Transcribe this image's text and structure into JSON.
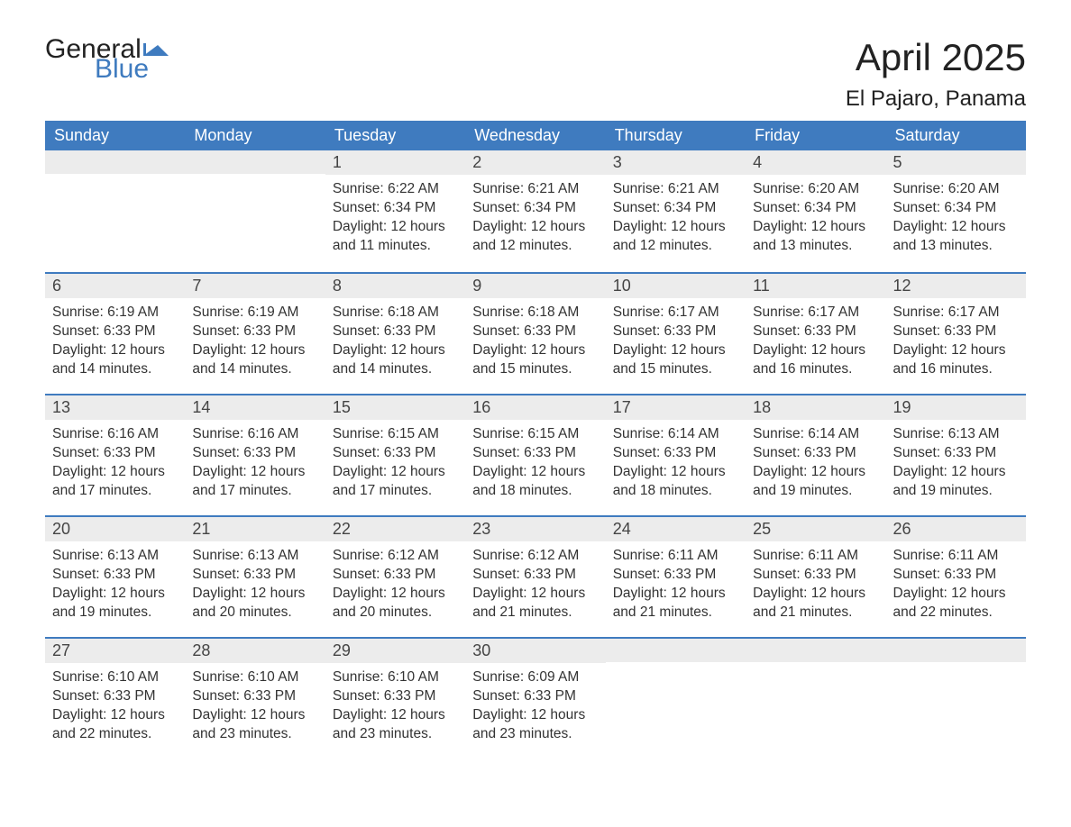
{
  "logo": {
    "word1": "General",
    "word2": "Blue",
    "word1_color": "#222222",
    "word2_color": "#3f7bbf",
    "flag_color": "#3f7bbf"
  },
  "title": "April 2025",
  "location": "El Pajaro, Panama",
  "colors": {
    "header_bg": "#3f7bbf",
    "header_text": "#ffffff",
    "daynum_bg": "#ececec",
    "row_border": "#3f7bbf",
    "body_text": "#333333",
    "background": "#ffffff"
  },
  "day_headers": [
    "Sunday",
    "Monday",
    "Tuesday",
    "Wednesday",
    "Thursday",
    "Friday",
    "Saturday"
  ],
  "weeks": [
    [
      {
        "num": "",
        "sunrise": "",
        "sunset": "",
        "daylight": ""
      },
      {
        "num": "",
        "sunrise": "",
        "sunset": "",
        "daylight": ""
      },
      {
        "num": "1",
        "sunrise": "Sunrise: 6:22 AM",
        "sunset": "Sunset: 6:34 PM",
        "daylight": "Daylight: 12 hours and 11 minutes."
      },
      {
        "num": "2",
        "sunrise": "Sunrise: 6:21 AM",
        "sunset": "Sunset: 6:34 PM",
        "daylight": "Daylight: 12 hours and 12 minutes."
      },
      {
        "num": "3",
        "sunrise": "Sunrise: 6:21 AM",
        "sunset": "Sunset: 6:34 PM",
        "daylight": "Daylight: 12 hours and 12 minutes."
      },
      {
        "num": "4",
        "sunrise": "Sunrise: 6:20 AM",
        "sunset": "Sunset: 6:34 PM",
        "daylight": "Daylight: 12 hours and 13 minutes."
      },
      {
        "num": "5",
        "sunrise": "Sunrise: 6:20 AM",
        "sunset": "Sunset: 6:34 PM",
        "daylight": "Daylight: 12 hours and 13 minutes."
      }
    ],
    [
      {
        "num": "6",
        "sunrise": "Sunrise: 6:19 AM",
        "sunset": "Sunset: 6:33 PM",
        "daylight": "Daylight: 12 hours and 14 minutes."
      },
      {
        "num": "7",
        "sunrise": "Sunrise: 6:19 AM",
        "sunset": "Sunset: 6:33 PM",
        "daylight": "Daylight: 12 hours and 14 minutes."
      },
      {
        "num": "8",
        "sunrise": "Sunrise: 6:18 AM",
        "sunset": "Sunset: 6:33 PM",
        "daylight": "Daylight: 12 hours and 14 minutes."
      },
      {
        "num": "9",
        "sunrise": "Sunrise: 6:18 AM",
        "sunset": "Sunset: 6:33 PM",
        "daylight": "Daylight: 12 hours and 15 minutes."
      },
      {
        "num": "10",
        "sunrise": "Sunrise: 6:17 AM",
        "sunset": "Sunset: 6:33 PM",
        "daylight": "Daylight: 12 hours and 15 minutes."
      },
      {
        "num": "11",
        "sunrise": "Sunrise: 6:17 AM",
        "sunset": "Sunset: 6:33 PM",
        "daylight": "Daylight: 12 hours and 16 minutes."
      },
      {
        "num": "12",
        "sunrise": "Sunrise: 6:17 AM",
        "sunset": "Sunset: 6:33 PM",
        "daylight": "Daylight: 12 hours and 16 minutes."
      }
    ],
    [
      {
        "num": "13",
        "sunrise": "Sunrise: 6:16 AM",
        "sunset": "Sunset: 6:33 PM",
        "daylight": "Daylight: 12 hours and 17 minutes."
      },
      {
        "num": "14",
        "sunrise": "Sunrise: 6:16 AM",
        "sunset": "Sunset: 6:33 PM",
        "daylight": "Daylight: 12 hours and 17 minutes."
      },
      {
        "num": "15",
        "sunrise": "Sunrise: 6:15 AM",
        "sunset": "Sunset: 6:33 PM",
        "daylight": "Daylight: 12 hours and 17 minutes."
      },
      {
        "num": "16",
        "sunrise": "Sunrise: 6:15 AM",
        "sunset": "Sunset: 6:33 PM",
        "daylight": "Daylight: 12 hours and 18 minutes."
      },
      {
        "num": "17",
        "sunrise": "Sunrise: 6:14 AM",
        "sunset": "Sunset: 6:33 PM",
        "daylight": "Daylight: 12 hours and 18 minutes."
      },
      {
        "num": "18",
        "sunrise": "Sunrise: 6:14 AM",
        "sunset": "Sunset: 6:33 PM",
        "daylight": "Daylight: 12 hours and 19 minutes."
      },
      {
        "num": "19",
        "sunrise": "Sunrise: 6:13 AM",
        "sunset": "Sunset: 6:33 PM",
        "daylight": "Daylight: 12 hours and 19 minutes."
      }
    ],
    [
      {
        "num": "20",
        "sunrise": "Sunrise: 6:13 AM",
        "sunset": "Sunset: 6:33 PM",
        "daylight": "Daylight: 12 hours and 19 minutes."
      },
      {
        "num": "21",
        "sunrise": "Sunrise: 6:13 AM",
        "sunset": "Sunset: 6:33 PM",
        "daylight": "Daylight: 12 hours and 20 minutes."
      },
      {
        "num": "22",
        "sunrise": "Sunrise: 6:12 AM",
        "sunset": "Sunset: 6:33 PM",
        "daylight": "Daylight: 12 hours and 20 minutes."
      },
      {
        "num": "23",
        "sunrise": "Sunrise: 6:12 AM",
        "sunset": "Sunset: 6:33 PM",
        "daylight": "Daylight: 12 hours and 21 minutes."
      },
      {
        "num": "24",
        "sunrise": "Sunrise: 6:11 AM",
        "sunset": "Sunset: 6:33 PM",
        "daylight": "Daylight: 12 hours and 21 minutes."
      },
      {
        "num": "25",
        "sunrise": "Sunrise: 6:11 AM",
        "sunset": "Sunset: 6:33 PM",
        "daylight": "Daylight: 12 hours and 21 minutes."
      },
      {
        "num": "26",
        "sunrise": "Sunrise: 6:11 AM",
        "sunset": "Sunset: 6:33 PM",
        "daylight": "Daylight: 12 hours and 22 minutes."
      }
    ],
    [
      {
        "num": "27",
        "sunrise": "Sunrise: 6:10 AM",
        "sunset": "Sunset: 6:33 PM",
        "daylight": "Daylight: 12 hours and 22 minutes."
      },
      {
        "num": "28",
        "sunrise": "Sunrise: 6:10 AM",
        "sunset": "Sunset: 6:33 PM",
        "daylight": "Daylight: 12 hours and 23 minutes."
      },
      {
        "num": "29",
        "sunrise": "Sunrise: 6:10 AM",
        "sunset": "Sunset: 6:33 PM",
        "daylight": "Daylight: 12 hours and 23 minutes."
      },
      {
        "num": "30",
        "sunrise": "Sunrise: 6:09 AM",
        "sunset": "Sunset: 6:33 PM",
        "daylight": "Daylight: 12 hours and 23 minutes."
      },
      {
        "num": "",
        "sunrise": "",
        "sunset": "",
        "daylight": ""
      },
      {
        "num": "",
        "sunrise": "",
        "sunset": "",
        "daylight": ""
      },
      {
        "num": "",
        "sunrise": "",
        "sunset": "",
        "daylight": ""
      }
    ]
  ]
}
